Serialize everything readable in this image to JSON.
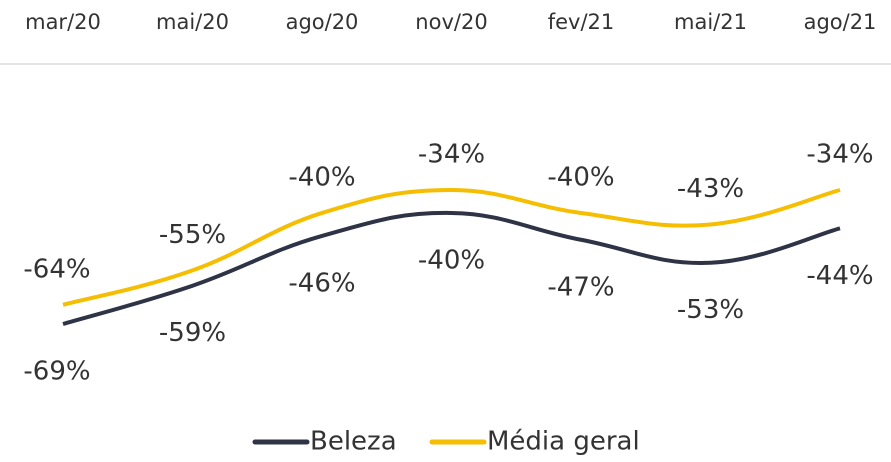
{
  "chart_data": {
    "type": "line",
    "categories": [
      "mar/20",
      "mai/20",
      "ago/20",
      "nov/20",
      "fev/21",
      "mai/21",
      "ago/21"
    ],
    "series": [
      {
        "name": "Beleza",
        "color": "#2e3445",
        "values": [
          -69,
          -59,
          -46,
          -40,
          -47,
          -53,
          -44
        ],
        "value_labels": [
          "-69%",
          "-59%",
          "-46%",
          "-40%",
          "-47%",
          "-53%",
          "-44%"
        ]
      },
      {
        "name": "Média geral",
        "color": "#f5be00",
        "values": [
          -64,
          -55,
          -40,
          -34,
          -40,
          -43,
          -34
        ],
        "value_labels": [
          "-64%",
          "-55%",
          "-40%",
          "-34%",
          "-40%",
          "-43%",
          "-34%"
        ]
      }
    ]
  }
}
